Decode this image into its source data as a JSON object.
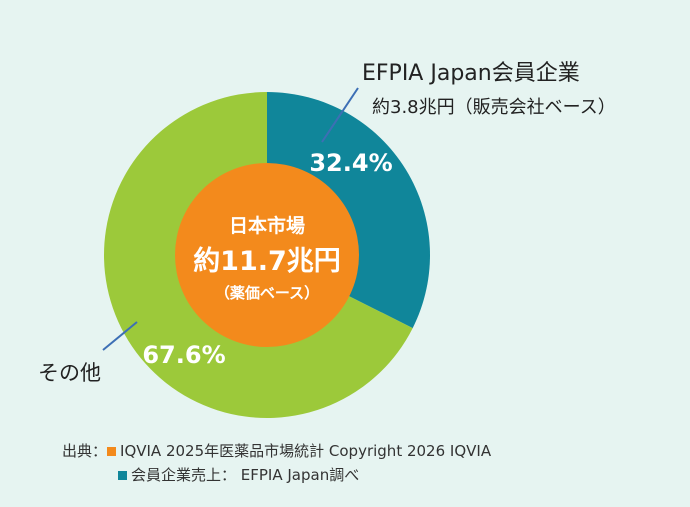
{
  "colors": {
    "background": "#e6f4f1",
    "member": "#10869a",
    "other": "#9cc93a",
    "center": "#f38a1c",
    "leader": "#3d6fb5"
  },
  "center": {
    "line1": "日本市場",
    "line2": "約11.7兆円",
    "line3": "（薬価ベース）"
  },
  "labels": {
    "member_title": "EFPIA Japan会員企業",
    "member_sub": "約3.8兆円（販売会社ベース）",
    "other": "その他"
  },
  "chart_data": {
    "type": "pie",
    "variant": "donut",
    "title": "",
    "series": [
      {
        "name": "EFPIA Japan会員企業",
        "value": 32.4,
        "label": "32.4%"
      },
      {
        "name": "その他",
        "value": 67.6,
        "label": "67.6%"
      }
    ]
  },
  "source": {
    "prefix": "出典：",
    "line1": "IQVIA 2025年医薬品市場統計  Copyright 2026 IQVIA",
    "line2": "会員企業売上： EFPIA Japan調べ"
  }
}
